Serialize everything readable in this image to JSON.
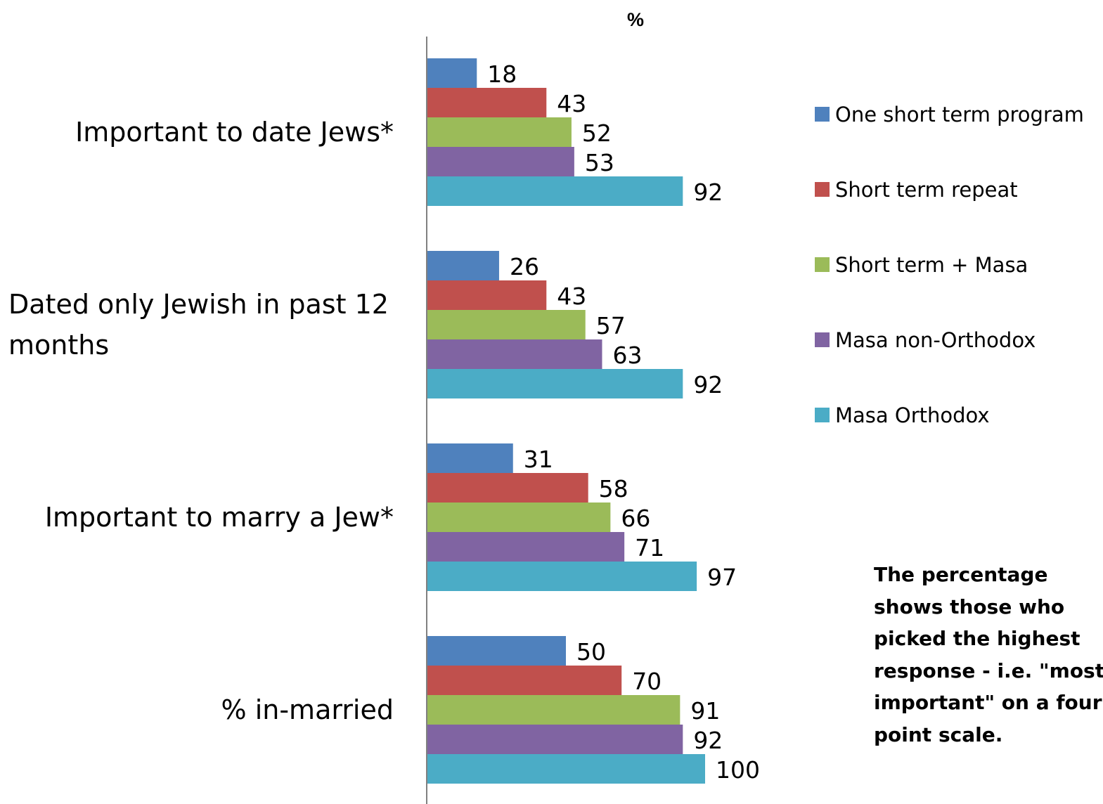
{
  "chart_data": {
    "type": "bar",
    "orientation": "horizontal",
    "title": "%",
    "categories": [
      "Important to date Jews*",
      "Dated only Jewish in past 12 months",
      "Important to marry a Jew*",
      "% in-married"
    ],
    "category_lines": [
      [
        "Important to date Jews*"
      ],
      [
        "Dated only Jewish in past 12",
        "months"
      ],
      [
        "Important to marry a Jew*"
      ],
      [
        "% in-married"
      ]
    ],
    "series": [
      {
        "name": "One short term program",
        "color": "#4F81BD",
        "values": [
          18,
          26,
          31,
          50
        ]
      },
      {
        "name": "Short term repeat",
        "color": "#C0504D",
        "values": [
          43,
          43,
          58,
          70
        ]
      },
      {
        "name": "Short term + Masa",
        "color": "#9BBB59",
        "values": [
          52,
          57,
          66,
          91
        ]
      },
      {
        "name": "Masa non-Orthodox",
        "color": "#8064A2",
        "values": [
          53,
          63,
          71,
          92
        ]
      },
      {
        "name": "Masa Orthodox",
        "color": "#4BACC6",
        "values": [
          92,
          92,
          97,
          100
        ]
      }
    ],
    "xlim": [
      0,
      100
    ],
    "grid": false,
    "data_labels": true,
    "legend_position": "right",
    "note": "The percentage shows those who picked the highest response - i.e. \"most important\" on a four point scale.",
    "note_lines": [
      "The percentage",
      "shows those who",
      "picked the highest",
      "response - i.e. \"most",
      "important\" on a four",
      "point scale."
    ]
  }
}
